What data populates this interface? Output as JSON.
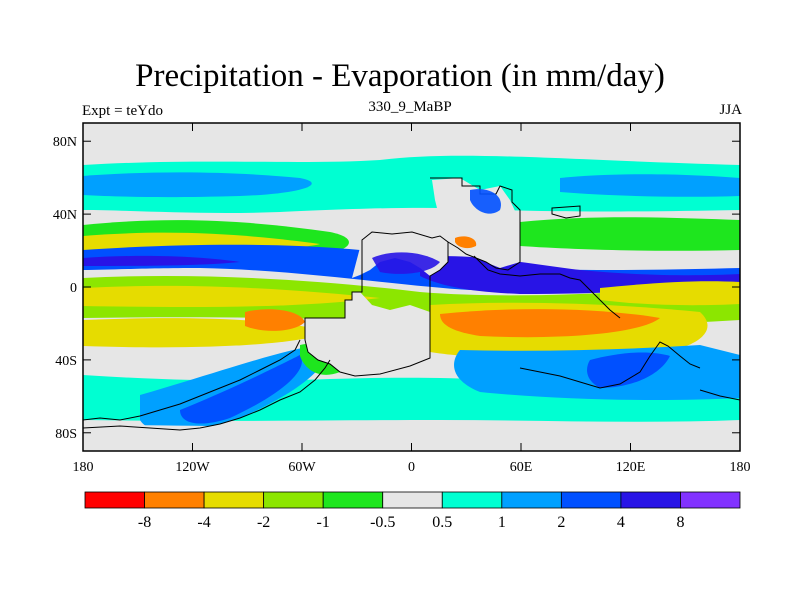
{
  "title": "Precipitation - Evaporation (in mm/day)",
  "left_label": "Expt = teYdo",
  "center_label": "330_9_MaBP",
  "right_label": "JJA",
  "colors": {
    "background": "#e6e6e6",
    "land_outline": "#000000"
  },
  "chart_data": {
    "type": "heatmap",
    "lon_range": [
      -180,
      180
    ],
    "lat_range": [
      -90,
      90
    ],
    "x_ticks": [
      {
        "label": "180",
        "lon": -180
      },
      {
        "label": "120W",
        "lon": -120
      },
      {
        "label": "60W",
        "lon": -60
      },
      {
        "label": "0",
        "lon": 0
      },
      {
        "label": "60E",
        "lon": 60
      },
      {
        "label": "120E",
        "lon": 120
      },
      {
        "label": "180",
        "lon": 180
      }
    ],
    "y_ticks": [
      {
        "label": "80N",
        "lat": 80
      },
      {
        "label": "40N",
        "lat": 40
      },
      {
        "label": "0",
        "lat": 0
      },
      {
        "label": "40S",
        "lat": -40
      },
      {
        "label": "80S",
        "lat": -80
      }
    ],
    "colorbar": {
      "colors": [
        "#ff0000",
        "#ff8000",
        "#e6dc00",
        "#8ce600",
        "#1ee61e",
        "#e6e6e6",
        "#00ffd2",
        "#00a0ff",
        "#0050ff",
        "#2814e6",
        "#8232ff"
      ],
      "labels": [
        "-8",
        "-4",
        "-2",
        "-1",
        "-0.5",
        "0.5",
        "1",
        "2",
        "4",
        "8"
      ]
    }
  }
}
